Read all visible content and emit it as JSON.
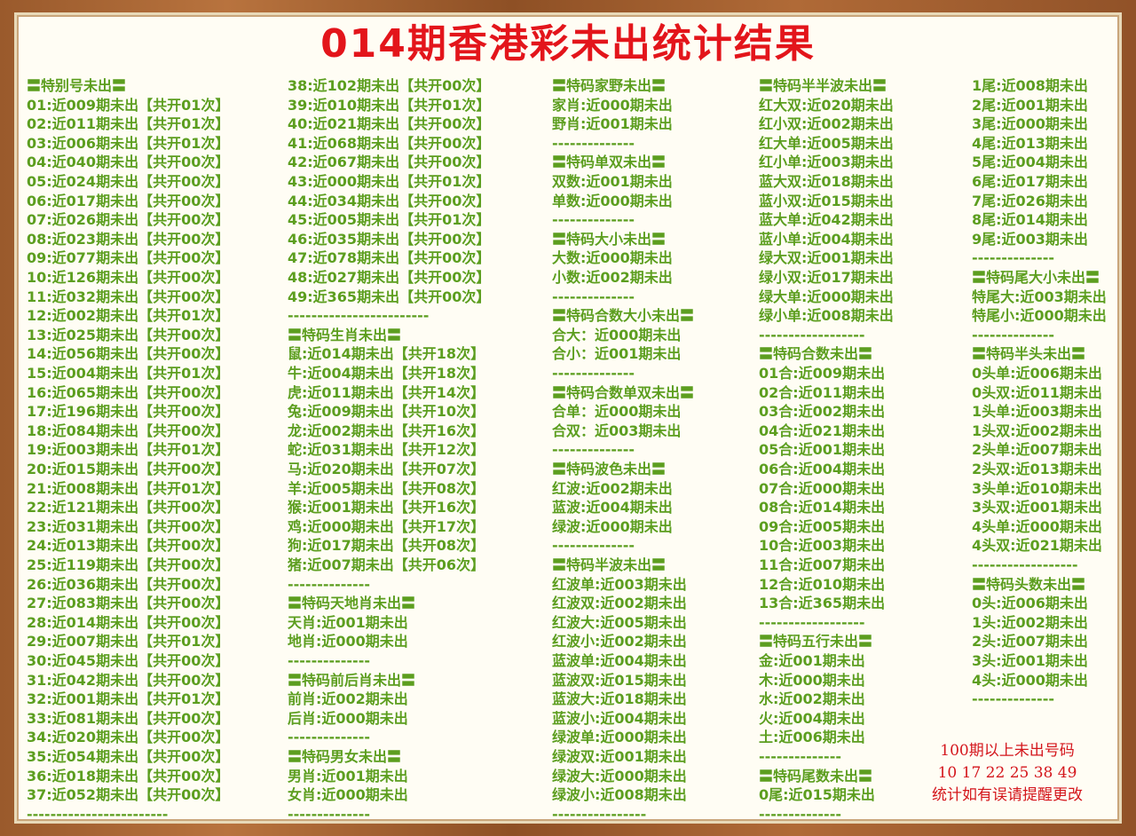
{
  "title": "014期香港彩未出统计结果",
  "columns": [
    [
      "〓特别号未出〓",
      "01:近009期未出【共开01次】",
      "02:近011期未出【共开01次】",
      "03:近006期未出【共开01次】",
      "04:近040期未出【共开00次】",
      "05:近024期未出【共开00次】",
      "06:近017期未出【共开00次】",
      "07:近026期未出【共开00次】",
      "08:近023期未出【共开00次】",
      "09:近077期未出【共开00次】",
      "10:近126期未出【共开00次】",
      "11:近032期未出【共开00次】",
      "12:近002期未出【共开01次】",
      "13:近025期未出【共开00次】",
      "14:近056期未出【共开00次】",
      "15:近004期未出【共开01次】",
      "16:近065期未出【共开00次】",
      "17:近196期未出【共开00次】",
      "18:近084期未出【共开00次】",
      "19:近003期未出【共开01次】",
      "20:近015期未出【共开00次】",
      "21:近008期未出【共开01次】",
      "22:近121期未出【共开00次】",
      "23:近031期未出【共开00次】",
      "24:近013期未出【共开00次】",
      "25:近119期未出【共开00次】",
      "26:近036期未出【共开00次】",
      "27:近083期未出【共开00次】",
      "28:近014期未出【共开00次】",
      "29:近007期未出【共开01次】",
      "30:近045期未出【共开00次】",
      "31:近042期未出【共开00次】",
      "32:近001期未出【共开01次】",
      "33:近081期未出【共开00次】",
      "34:近020期未出【共开00次】",
      "35:近054期未出【共开00次】",
      "36:近018期未出【共开00次】",
      "37:近052期未出【共开00次】",
      "------------------------"
    ],
    [
      "38:近102期未出【共开00次】",
      "39:近010期未出【共开01次】",
      "40:近021期未出【共开00次】",
      "41:近068期未出【共开00次】",
      "42:近067期未出【共开00次】",
      "43:近000期未出【共开01次】",
      "44:近034期未出【共开00次】",
      "45:近005期未出【共开01次】",
      "46:近035期未出【共开00次】",
      "47:近078期未出【共开00次】",
      "48:近027期未出【共开00次】",
      "49:近365期未出【共开00次】",
      "------------------------",
      "〓特码生肖未出〓",
      "鼠:近014期未出【共开18次】",
      "牛:近004期未出【共开18次】",
      "虎:近011期未出【共开14次】",
      "兔:近009期未出【共开10次】",
      "龙:近002期未出【共开16次】",
      "蛇:近031期未出【共开12次】",
      "马:近020期未出【共开07次】",
      "羊:近005期未出【共开08次】",
      "猴:近001期未出【共开16次】",
      "鸡:近000期未出【共开17次】",
      "狗:近017期未出【共开08次】",
      "猪:近007期未出【共开06次】",
      "--------------",
      "〓特码天地肖未出〓",
      "天肖:近001期未出",
      "地肖:近000期未出",
      "--------------",
      "〓特码前后肖未出〓",
      "前肖:近002期未出",
      "后肖:近000期未出",
      "--------------",
      "〓特码男女未出〓",
      "男肖:近001期未出",
      "女肖:近000期未出",
      "--------------"
    ],
    [
      "〓特码家野未出〓",
      "家肖:近000期未出",
      "野肖:近001期未出",
      "--------------",
      "〓特码单双未出〓",
      "双数:近001期未出",
      "单数:近000期未出",
      "--------------",
      "〓特码大小未出〓",
      "大数:近000期未出",
      "小数:近002期未出",
      "--------------",
      "〓特码合数大小未出〓",
      "合大：近000期未出",
      "合小：近001期未出",
      "--------------",
      "〓特码合数单双未出〓",
      "合单：近000期未出",
      "合双：近003期未出",
      "--------------",
      "〓特码波色未出〓",
      "红波:近002期未出",
      "蓝波:近004期未出",
      "绿波:近000期未出",
      "--------------",
      "〓特码半波未出〓",
      "红波单:近003期未出",
      "红波双:近002期未出",
      "红波大:近005期未出",
      "红波小:近002期未出",
      "蓝波单:近004期未出",
      "蓝波双:近015期未出",
      "蓝波大:近018期未出",
      "蓝波小:近004期未出",
      "绿波单:近000期未出",
      "绿波双:近001期未出",
      "绿波大:近000期未出",
      "绿波小:近008期未出",
      "----------------"
    ],
    [
      "〓特码半半波未出〓",
      "红大双:近020期未出",
      "红小双:近002期未出",
      "红大单:近005期未出",
      "红小单:近003期未出",
      "蓝大双:近018期未出",
      "蓝小双:近015期未出",
      "蓝大单:近042期未出",
      "蓝小单:近004期未出",
      "绿大双:近001期未出",
      "绿小双:近017期未出",
      "绿大单:近000期未出",
      "绿小单:近008期未出",
      "------------------",
      "〓特码合数未出〓",
      "01合:近009期未出",
      "02合:近011期未出",
      "03合:近002期未出",
      "04合:近021期未出",
      "05合:近001期未出",
      "06合:近004期未出",
      "07合:近000期未出",
      "08合:近014期未出",
      "09合:近005期未出",
      "10合:近003期未出",
      "11合:近007期未出",
      "12合:近010期未出",
      "13合:近365期未出",
      "------------------",
      "〓特码五行未出〓",
      "金:近001期未出",
      "木:近000期未出",
      "水:近002期未出",
      "火:近004期未出",
      "土:近006期未出",
      "--------------",
      "〓特码尾数未出〓",
      "0尾:近015期未出",
      "--------------"
    ],
    [
      "1尾:近008期未出",
      "2尾:近001期未出",
      "3尾:近000期未出",
      "4尾:近013期未出",
      "5尾:近004期未出",
      "6尾:近017期未出",
      "7尾:近026期未出",
      "8尾:近014期未出",
      "9尾:近003期未出",
      "--------------",
      "〓特码尾大小未出〓",
      "特尾大:近003期未出",
      "特尾小:近000期未出",
      "--------------",
      "〓特码半头未出〓",
      "0头单:近006期未出",
      "0头双:近011期未出",
      "1头单:近003期未出",
      "1头双:近002期未出",
      "2头单:近007期未出",
      "2头双:近013期未出",
      "3头单:近010期未出",
      "3头双:近001期未出",
      "4头单:近000期未出",
      "4头双:近021期未出",
      "------------------",
      "〓特码头数未出〓",
      "0头:近006期未出",
      "1头:近002期未出",
      "2头:近007期未出",
      "3头:近001期未出",
      "4头:近000期未出",
      "--------------"
    ]
  ],
  "note": [
    "100期以上未出号码",
    "10  17  22  25  38  49",
    "统计如有误请提醒更改"
  ]
}
